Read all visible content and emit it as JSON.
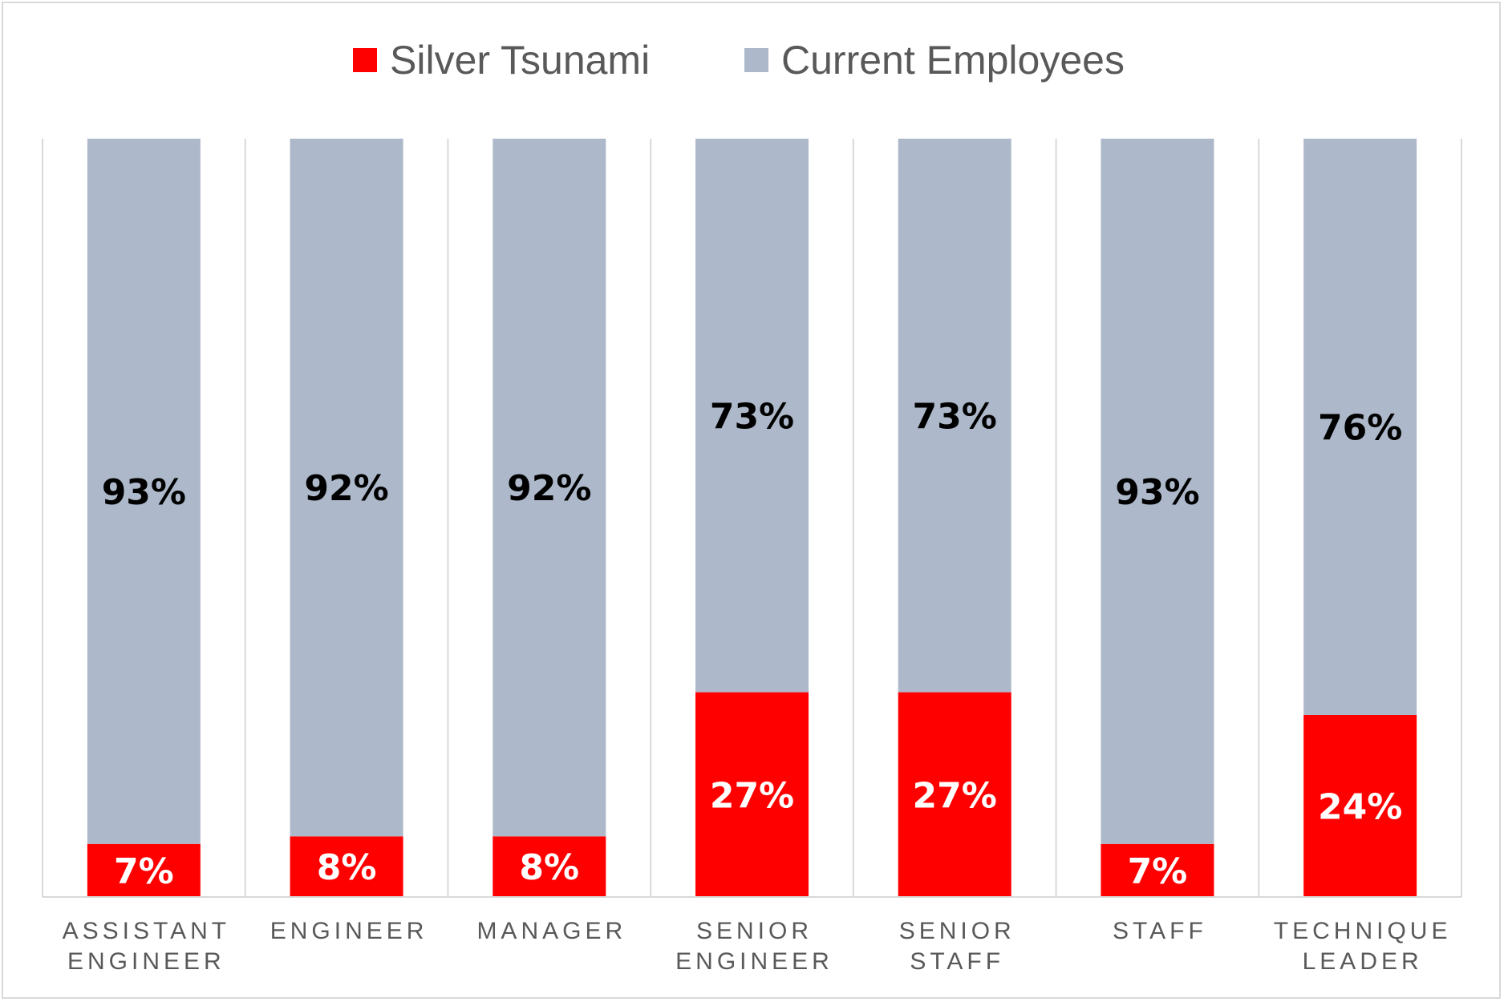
{
  "chart_data": {
    "type": "bar",
    "stacked": true,
    "categories": [
      [
        "ASSISTANT",
        "ENGINEER"
      ],
      [
        "ENGINEER"
      ],
      [
        "MANAGER"
      ],
      [
        "SENIOR",
        "ENGINEER"
      ],
      [
        "SENIOR",
        "STAFF"
      ],
      [
        "STAFF"
      ],
      [
        "TECHNIQUE",
        "LEADER"
      ]
    ],
    "series": [
      {
        "name": "Silver Tsunami",
        "color": "#ff0000",
        "label_color": "#ffffff",
        "values": [
          7,
          8,
          8,
          27,
          27,
          7,
          24
        ],
        "labels": [
          "7%",
          "8%",
          "8%",
          "27%",
          "27%",
          "7%",
          "24%"
        ]
      },
      {
        "name": "Current Employees",
        "color": "#adb9ca",
        "label_color": "#000000",
        "values": [
          93,
          92,
          92,
          73,
          73,
          93,
          76
        ],
        "labels": [
          "93%",
          "92%",
          "92%",
          "73%",
          "73%",
          "93%",
          "76%"
        ]
      }
    ],
    "ylim": [
      0,
      100
    ],
    "legend_position": "top",
    "grid": "vertical category separators"
  }
}
